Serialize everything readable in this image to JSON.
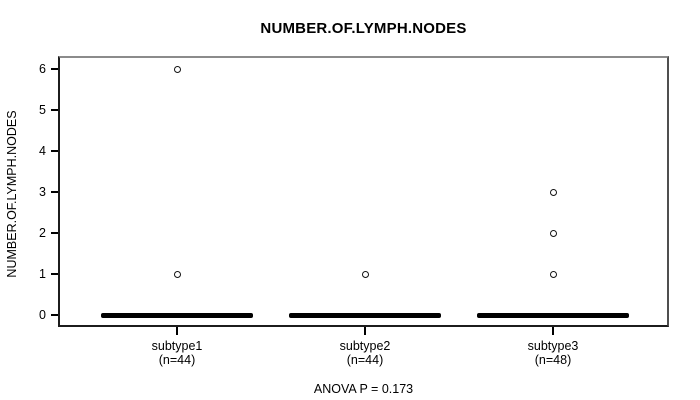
{
  "chart_data": {
    "type": "boxplot",
    "title": "NUMBER.OF.LYMPH.NODES",
    "ylabel": "NUMBER.OF.LYMPH.NODES",
    "xlabel": "",
    "annotation": "ANOVA P = 0.173",
    "ylim": [
      0,
      6
    ],
    "yticks": [
      0,
      1,
      2,
      3,
      4,
      5,
      6
    ],
    "grid": false,
    "legend_position": "none",
    "groups": [
      {
        "label": "subtype1",
        "n": 44,
        "n_label": "(n=44)",
        "q1": 0,
        "median": 0,
        "q3": 0,
        "whisker_low": 0,
        "whisker_high": 0,
        "outliers": [
          1,
          6
        ]
      },
      {
        "label": "subtype2",
        "n": 44,
        "n_label": "(n=44)",
        "q1": 0,
        "median": 0,
        "q3": 0,
        "whisker_low": 0,
        "whisker_high": 0,
        "outliers": [
          1
        ]
      },
      {
        "label": "subtype3",
        "n": 48,
        "n_label": "(n=48)",
        "q1": 0,
        "median": 0,
        "q3": 0,
        "whisker_low": 0,
        "whisker_high": 0,
        "outliers": [
          1,
          2,
          3
        ]
      }
    ],
    "colors": {
      "foreground": "#000000",
      "background": "#ffffff"
    }
  }
}
